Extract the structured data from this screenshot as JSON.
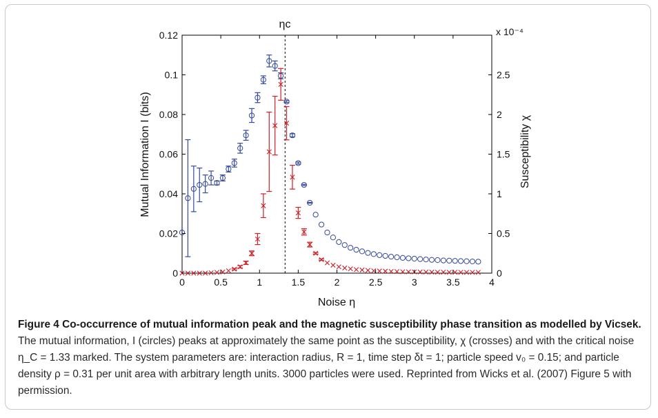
{
  "figure": {
    "title": "Figure 4 Co-occurrence of mutual information peak and the magnetic susceptibility phase transition as modelled by Vicsek.",
    "caption_body": "The mutual information, I (circles) peaks at approximately the same point as the susceptibility, χ (crosses) and with the critical noise η_C = 1.33 marked. The system parameters are: interaction radius, R = 1, time step δt = 1; particle speed v₀ = 0.15; and particle density ρ = 0.31 per unit area with arbitrary length units. 3000 particles were used. Reprinted from Wicks et al. (2007) Figure 5 with permission."
  },
  "chart_data": {
    "type": "scatter",
    "xlabel": "Noise η",
    "ylabel_left": "Mutual Information I (bits)",
    "ylabel_right": "Susceptibility χ",
    "right_axis_multiplier": "x 10⁻⁴",
    "xlim": [
      0,
      4
    ],
    "ylim_left": [
      0,
      0.12
    ],
    "ylim_right": [
      0,
      3.0
    ],
    "x_ticks": [
      "0",
      "0.5",
      "1",
      "1.5",
      "2",
      "2.5",
      "3",
      "3.5",
      "4"
    ],
    "y_ticks_left": [
      "0",
      "0.02",
      "0.04",
      "0.06",
      "0.08",
      "0.1",
      "0.12"
    ],
    "y_ticks_right": [
      "0",
      "0.5",
      "1",
      "1.5",
      "2",
      "2.5"
    ],
    "critical_marker": {
      "x": 1.33,
      "label": "ηc"
    },
    "series": [
      {
        "marker": "circle",
        "color": "#33479b",
        "axis": "left",
        "points": [
          {
            "x": 0.0,
            "y": 0.0205,
            "err": 0.0
          },
          {
            "x": 0.075,
            "y": 0.0378,
            "err": 0.0295
          },
          {
            "x": 0.15,
            "y": 0.0425,
            "err": 0.0115
          },
          {
            "x": 0.225,
            "y": 0.0445,
            "err": 0.0085
          },
          {
            "x": 0.3,
            "y": 0.045,
            "err": 0.0045
          },
          {
            "x": 0.375,
            "y": 0.048,
            "err": 0.0035
          },
          {
            "x": 0.45,
            "y": 0.0455,
            "err": 0.001
          },
          {
            "x": 0.525,
            "y": 0.048,
            "err": 0.0015
          },
          {
            "x": 0.6,
            "y": 0.0525,
            "err": 0.0015
          },
          {
            "x": 0.675,
            "y": 0.0555,
            "err": 0.002
          },
          {
            "x": 0.75,
            "y": 0.063,
            "err": 0.0025
          },
          {
            "x": 0.825,
            "y": 0.0695,
            "err": 0.0025
          },
          {
            "x": 0.9,
            "y": 0.0795,
            "err": 0.0035
          },
          {
            "x": 0.975,
            "y": 0.0885,
            "err": 0.0025
          },
          {
            "x": 1.05,
            "y": 0.0975,
            "err": 0.002
          },
          {
            "x": 1.125,
            "y": 0.107,
            "err": 0.003
          },
          {
            "x": 1.2,
            "y": 0.1045,
            "err": 0.0025
          },
          {
            "x": 1.275,
            "y": 0.0995,
            "err": 0.0015
          },
          {
            "x": 1.35,
            "y": 0.0865,
            "err": 0.0005
          },
          {
            "x": 1.425,
            "y": 0.0695,
            "err": 0.0008
          },
          {
            "x": 1.5,
            "y": 0.0555,
            "err": 0.0005
          },
          {
            "x": 1.575,
            "y": 0.0445,
            "err": 0.0003
          },
          {
            "x": 1.65,
            "y": 0.0355,
            "err": 0.0002
          },
          {
            "x": 1.725,
            "y": 0.0295,
            "err": 0.0
          },
          {
            "x": 1.8,
            "y": 0.0245,
            "err": 0.0
          },
          {
            "x": 1.875,
            "y": 0.0205,
            "err": 0.0
          },
          {
            "x": 1.95,
            "y": 0.018,
            "err": 0.0
          },
          {
            "x": 2.025,
            "y": 0.0157,
            "err": 0.0
          },
          {
            "x": 2.1,
            "y": 0.0142,
            "err": 0.0
          },
          {
            "x": 2.175,
            "y": 0.0128,
            "err": 0.0
          },
          {
            "x": 2.25,
            "y": 0.0118,
            "err": 0.0
          },
          {
            "x": 2.325,
            "y": 0.011,
            "err": 0.0
          },
          {
            "x": 2.4,
            "y": 0.0102,
            "err": 0.0
          },
          {
            "x": 2.475,
            "y": 0.0096,
            "err": 0.0
          },
          {
            "x": 2.55,
            "y": 0.0091,
            "err": 0.0
          },
          {
            "x": 2.625,
            "y": 0.0087,
            "err": 0.0
          },
          {
            "x": 2.7,
            "y": 0.0083,
            "err": 0.0
          },
          {
            "x": 2.775,
            "y": 0.008,
            "err": 0.0
          },
          {
            "x": 2.85,
            "y": 0.0077,
            "err": 0.0
          },
          {
            "x": 2.925,
            "y": 0.0075,
            "err": 0.0
          },
          {
            "x": 3.0,
            "y": 0.0073,
            "err": 0.0
          },
          {
            "x": 3.075,
            "y": 0.0071,
            "err": 0.0
          },
          {
            "x": 3.15,
            "y": 0.0069,
            "err": 0.0
          },
          {
            "x": 3.225,
            "y": 0.0067,
            "err": 0.0
          },
          {
            "x": 3.3,
            "y": 0.0066,
            "err": 0.0
          },
          {
            "x": 3.375,
            "y": 0.0064,
            "err": 0.0
          },
          {
            "x": 3.45,
            "y": 0.0063,
            "err": 0.0
          },
          {
            "x": 3.525,
            "y": 0.0062,
            "err": 0.0
          },
          {
            "x": 3.6,
            "y": 0.0061,
            "err": 0.0
          },
          {
            "x": 3.675,
            "y": 0.006,
            "err": 0.0
          },
          {
            "x": 3.75,
            "y": 0.0059,
            "err": 0.0
          },
          {
            "x": 3.825,
            "y": 0.0058,
            "err": 0.0
          }
        ]
      },
      {
        "marker": "cross",
        "color": "#cc1f26",
        "axis": "right",
        "points": [
          {
            "x": 0.0,
            "y": 0.0,
            "err": 0.0
          },
          {
            "x": 0.075,
            "y": 0.0,
            "err": 0.0
          },
          {
            "x": 0.15,
            "y": 0.0,
            "err": 0.0
          },
          {
            "x": 0.225,
            "y": 0.0,
            "err": 0.0
          },
          {
            "x": 0.3,
            "y": 0.0,
            "err": 0.0
          },
          {
            "x": 0.375,
            "y": 0.005,
            "err": 0.0
          },
          {
            "x": 0.45,
            "y": 0.01,
            "err": 0.0
          },
          {
            "x": 0.525,
            "y": 0.015,
            "err": 0.0
          },
          {
            "x": 0.6,
            "y": 0.03,
            "err": 0.0
          },
          {
            "x": 0.675,
            "y": 0.05,
            "err": 0.01
          },
          {
            "x": 0.75,
            "y": 0.08,
            "err": 0.015
          },
          {
            "x": 0.825,
            "y": 0.13,
            "err": 0.02
          },
          {
            "x": 0.9,
            "y": 0.25,
            "err": 0.03
          },
          {
            "x": 0.975,
            "y": 0.43,
            "err": 0.07
          },
          {
            "x": 1.05,
            "y": 0.85,
            "err": 0.15
          },
          {
            "x": 1.125,
            "y": 1.53,
            "err": 0.5
          },
          {
            "x": 1.2,
            "y": 1.86,
            "err": 0.37
          },
          {
            "x": 1.275,
            "y": 2.38,
            "err": 0.2
          },
          {
            "x": 1.35,
            "y": 1.89,
            "err": 0.21
          },
          {
            "x": 1.425,
            "y": 1.21,
            "err": 0.15
          },
          {
            "x": 1.5,
            "y": 0.76,
            "err": 0.07
          },
          {
            "x": 1.575,
            "y": 0.52,
            "err": 0.04
          },
          {
            "x": 1.65,
            "y": 0.36,
            "err": 0.03
          },
          {
            "x": 1.725,
            "y": 0.25,
            "err": 0.01
          },
          {
            "x": 1.8,
            "y": 0.17,
            "err": 0.01
          },
          {
            "x": 1.875,
            "y": 0.13,
            "err": 0.0
          },
          {
            "x": 1.95,
            "y": 0.1,
            "err": 0.0
          },
          {
            "x": 2.025,
            "y": 0.08,
            "err": 0.0
          },
          {
            "x": 2.1,
            "y": 0.065,
            "err": 0.0
          },
          {
            "x": 2.175,
            "y": 0.055,
            "err": 0.0
          },
          {
            "x": 2.25,
            "y": 0.045,
            "err": 0.0
          },
          {
            "x": 2.325,
            "y": 0.04,
            "err": 0.0
          },
          {
            "x": 2.4,
            "y": 0.035,
            "err": 0.0
          },
          {
            "x": 2.475,
            "y": 0.03,
            "err": 0.0
          },
          {
            "x": 2.55,
            "y": 0.027,
            "err": 0.0
          },
          {
            "x": 2.625,
            "y": 0.025,
            "err": 0.0
          },
          {
            "x": 2.7,
            "y": 0.022,
            "err": 0.0
          },
          {
            "x": 2.775,
            "y": 0.02,
            "err": 0.0
          },
          {
            "x": 2.85,
            "y": 0.018,
            "err": 0.0
          },
          {
            "x": 2.925,
            "y": 0.017,
            "err": 0.0
          },
          {
            "x": 3.0,
            "y": 0.016,
            "err": 0.0
          },
          {
            "x": 3.075,
            "y": 0.015,
            "err": 0.0
          },
          {
            "x": 3.15,
            "y": 0.014,
            "err": 0.0
          },
          {
            "x": 3.225,
            "y": 0.013,
            "err": 0.0
          },
          {
            "x": 3.3,
            "y": 0.012,
            "err": 0.0
          },
          {
            "x": 3.375,
            "y": 0.012,
            "err": 0.0
          },
          {
            "x": 3.45,
            "y": 0.011,
            "err": 0.0
          },
          {
            "x": 3.525,
            "y": 0.011,
            "err": 0.0
          },
          {
            "x": 3.6,
            "y": 0.01,
            "err": 0.0
          },
          {
            "x": 3.675,
            "y": 0.01,
            "err": 0.0
          },
          {
            "x": 3.75,
            "y": 0.01,
            "err": 0.0
          },
          {
            "x": 3.825,
            "y": 0.01,
            "err": 0.0
          }
        ]
      }
    ]
  }
}
